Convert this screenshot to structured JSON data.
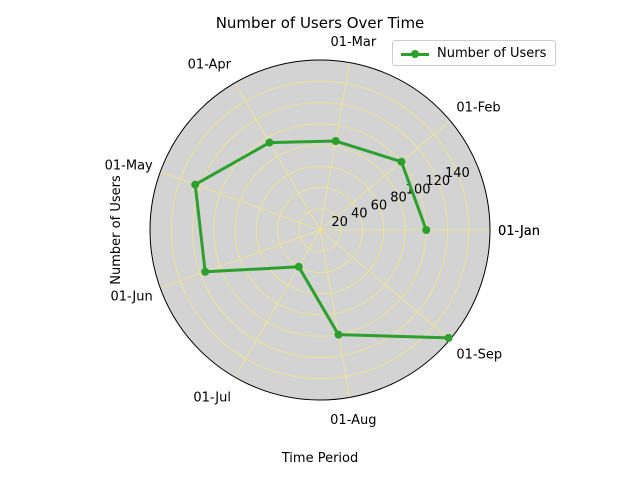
{
  "chart_data": {
    "type": "line",
    "projection": "polar",
    "title": "Number of Users Over Time",
    "xlabel": "Time Period",
    "ylabel": "Number of Users",
    "categories": [
      "01-Jan",
      "01-Feb",
      "01-Mar",
      "01-Apr",
      "01-May",
      "01-Jun",
      "01-Jul",
      "01-Aug",
      "01-Sep"
    ],
    "angle_labels": [
      "01-Jan",
      "01-Feb",
      "01-Mar",
      "01-Apr",
      "01-May",
      "01-Jun",
      "01-Jul",
      "01-Aug",
      "01-Sep",
      "01-Jan"
    ],
    "series": [
      {
        "name": "Number of Users",
        "values": [
          100,
          100,
          85,
          95,
          125,
          115,
          40,
          100,
          158
        ]
      }
    ],
    "radial_ticks": [
      20,
      40,
      60,
      80,
      100,
      120,
      140
    ],
    "ylim": [
      0,
      160
    ],
    "grid": true,
    "legend": "top-right",
    "colors": {
      "series": "#2ca02c",
      "plot_background": "#d3d3d3",
      "grid": "#f0e68c"
    }
  }
}
